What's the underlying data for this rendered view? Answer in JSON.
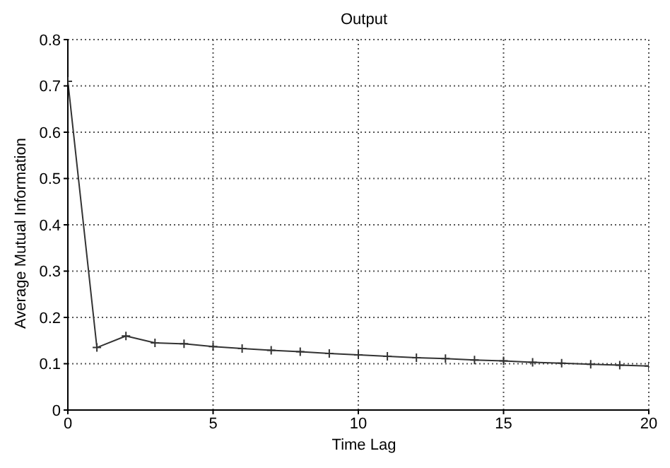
{
  "chart_data": {
    "type": "line",
    "title": "Output",
    "xlabel": "Time Lag",
    "ylabel": "Average Mutual Information",
    "x": [
      0,
      1,
      2,
      3,
      4,
      5,
      6,
      7,
      8,
      9,
      10,
      11,
      12,
      13,
      14,
      15,
      16,
      17,
      18,
      19,
      20
    ],
    "series": [
      {
        "color": "#333333",
        "values": [
          0.71,
          0.135,
          0.16,
          0.145,
          0.143,
          0.137,
          0.133,
          0.129,
          0.126,
          0.122,
          0.119,
          0.116,
          0.113,
          0.111,
          0.108,
          0.106,
          0.103,
          0.101,
          0.099,
          0.097,
          0.095
        ]
      }
    ],
    "xlim": [
      0,
      20
    ],
    "xticks": [
      0,
      5,
      10,
      15,
      20
    ],
    "ylim": [
      0,
      0.8
    ],
    "yticks": [
      0,
      0.1,
      0.2,
      0.3,
      0.4,
      0.5,
      0.6,
      0.7,
      0.8
    ],
    "grid": true,
    "marker": "cross",
    "line_style": "solid",
    "legend": false
  }
}
